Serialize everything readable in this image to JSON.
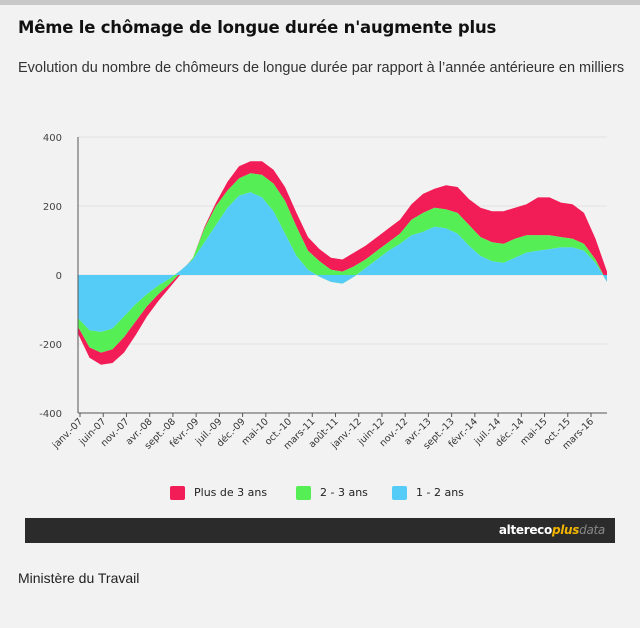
{
  "header": {
    "title": "Même le chômage de longue durée n'augmente plus",
    "subtitle": "Evolution du nombre de chômeurs de longue durée par rapport à l’année antérieure en milliers"
  },
  "source": "Ministère du Travail",
  "brand": {
    "part1": "altereco",
    "part2": "plus",
    "part3": "data"
  },
  "colors": {
    "plus3": "#f21d56",
    "y2_3": "#55ee55",
    "y1_2": "#55ccf7",
    "axis": "#555555",
    "grid": "#e3e3e3"
  },
  "chart_data": {
    "type": "area",
    "stacked": true,
    "title": "Même le chômage de longue durée n'augmente plus",
    "subtitle": "Evolution du nombre de chômeurs de longue durée par rapport à l’année antérieure en milliers",
    "ylim": [
      -400,
      400
    ],
    "yticks": [
      400,
      200,
      0,
      -200,
      -400
    ],
    "grid": true,
    "legend_position": "bottom",
    "x_tick_labels": [
      "janv.-07",
      "juin-07",
      "nov.-07",
      "avr.-08",
      "sept.-08",
      "févr.-09",
      "juil.-09",
      "déc.-09",
      "mai-10",
      "oct.-10",
      "mars-11",
      "août-11",
      "janv.-12",
      "juin-12",
      "nov.-12",
      "avr.-13",
      "sept.-13",
      "févr.-14",
      "juil.-14",
      "déc.-14",
      "mai-15",
      "oct.-15",
      "mars-16"
    ],
    "x": [
      "janv.-07",
      "mars-07",
      "juin-07",
      "sept.-07",
      "nov.-07",
      "janv.-08",
      "avr.-08",
      "juil.-08",
      "sept.-08",
      "nov.-08",
      "févr.-09",
      "avr.-09",
      "juil.-09",
      "oct.-09",
      "déc.-09",
      "mars-10",
      "mai-10",
      "août-10",
      "oct.-10",
      "déc.-10",
      "mars-11",
      "juin-11",
      "août-11",
      "nov.-11",
      "janv.-12",
      "avr.-12",
      "juin-12",
      "sept.-12",
      "nov.-12",
      "févr.-13",
      "avr.-13",
      "juil.-13",
      "sept.-13",
      "déc.-13",
      "févr.-14",
      "mai-14",
      "juil.-14",
      "oct.-14",
      "déc.-14",
      "mars-15",
      "mai-15",
      "août-15",
      "oct.-15",
      "janv.-16",
      "mars-16",
      "mai-16",
      "juil.-16"
    ],
    "series": [
      {
        "name": "1 - 2 ans",
        "values": [
          -125,
          -160,
          -165,
          -155,
          -120,
          -85,
          -55,
          -30,
          -10,
          15,
          45,
          95,
          145,
          195,
          230,
          240,
          225,
          185,
          120,
          55,
          15,
          -5,
          -20,
          -25,
          -5,
          20,
          45,
          70,
          90,
          115,
          125,
          140,
          135,
          120,
          85,
          55,
          40,
          35,
          50,
          65,
          70,
          75,
          80,
          80,
          70,
          35,
          -20
        ]
      },
      {
        "name": "2 - 3 ans",
        "values": [
          -25,
          -50,
          -60,
          -60,
          -60,
          -50,
          -35,
          -25,
          -15,
          -5,
          5,
          40,
          55,
          50,
          50,
          55,
          65,
          80,
          95,
          85,
          55,
          45,
          35,
          35,
          30,
          25,
          25,
          25,
          30,
          45,
          55,
          55,
          55,
          60,
          60,
          55,
          55,
          55,
          55,
          50,
          45,
          40,
          30,
          25,
          20,
          10,
          0
        ]
      },
      {
        "name": "Plus de 3 ans",
        "values": [
          -20,
          -30,
          -35,
          -40,
          -45,
          -40,
          -30,
          -20,
          -10,
          -5,
          0,
          5,
          10,
          25,
          35,
          35,
          40,
          40,
          40,
          40,
          40,
          35,
          35,
          35,
          40,
          40,
          40,
          40,
          40,
          45,
          55,
          55,
          70,
          75,
          75,
          85,
          90,
          95,
          90,
          90,
          110,
          110,
          100,
          100,
          90,
          60,
          30
        ]
      }
    ]
  }
}
